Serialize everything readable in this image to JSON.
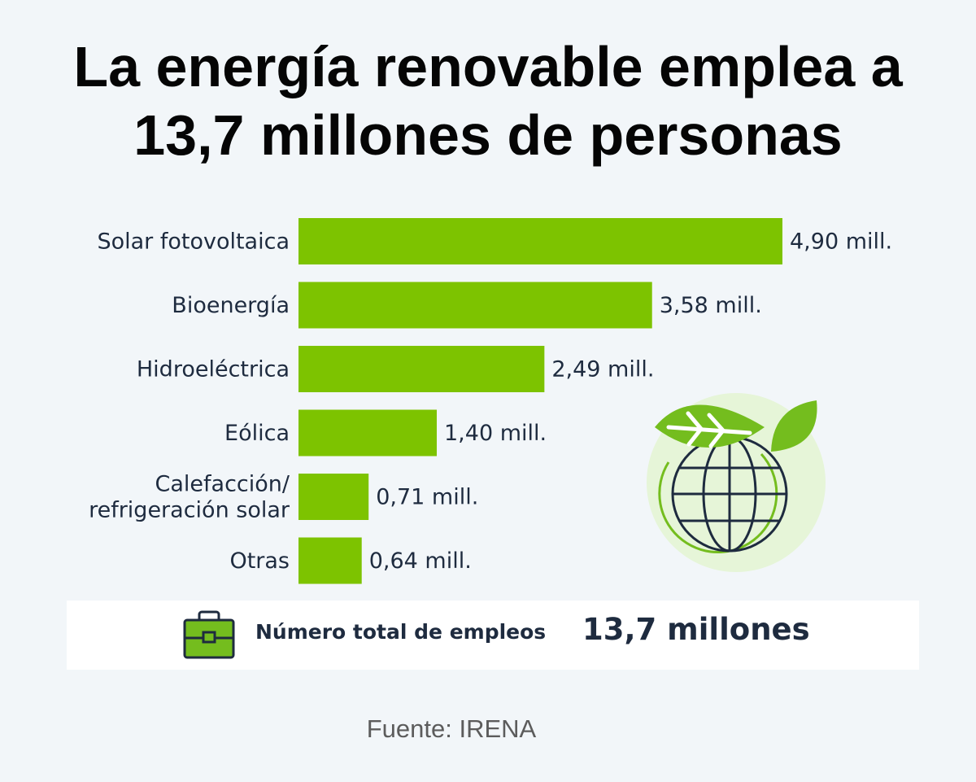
{
  "title": {
    "line1": "La energía renovable emplea a",
    "line2": "13,7 millones de personas"
  },
  "chart_data": {
    "type": "bar",
    "orientation": "horizontal",
    "categories": [
      [
        "Solar fotovoltaica"
      ],
      [
        "Bioenergía"
      ],
      [
        "Hidroeléctrica"
      ],
      [
        "Eólica"
      ],
      [
        "Calefacción/",
        "refrigeración solar"
      ],
      [
        "Otras"
      ]
    ],
    "values": [
      4.9,
      3.58,
      2.49,
      1.4,
      0.71,
      0.64
    ],
    "value_labels": [
      "4,90 mill.",
      "3,58 mill.",
      "2,49 mill.",
      "1,40 mill.",
      "0,71 mill.",
      "0,64 mill."
    ],
    "bar_color": "#7dc300",
    "grid": false
  },
  "total": {
    "label": "Número total de empleos",
    "value": "13,7 millones"
  },
  "source": "Fuente: IRENA",
  "colors": {
    "background": "#f2f6f9",
    "bar": "#7dc300",
    "text_dark": "#1e2b3f",
    "icon_green": "#74bd1e",
    "icon_light": "#e6f5d8"
  },
  "icons": [
    "globe-with-leaves-icon",
    "briefcase-icon"
  ]
}
